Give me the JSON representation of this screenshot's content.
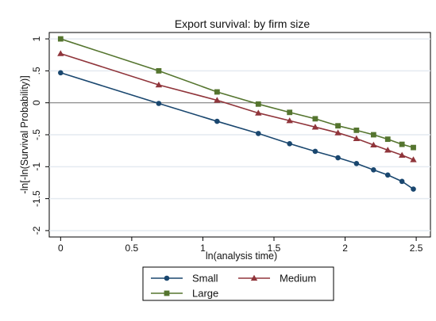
{
  "chart_data": {
    "type": "line",
    "title": "Export survival: by firm size",
    "xlabel": "ln(analysis time)",
    "ylabel": "-ln[-ln(Survival Probability)]",
    "xlim": [
      -0.08,
      2.6
    ],
    "ylim": [
      -2.1,
      1.1
    ],
    "xticks": [
      0,
      0.5,
      1,
      1.5,
      2,
      2.5
    ],
    "xtick_labels": [
      "0",
      "0.5",
      "1",
      "1.5",
      "2",
      "2.5"
    ],
    "yticks": [
      1,
      0.5,
      0,
      -0.5,
      -1,
      -1.5,
      -2
    ],
    "ytick_labels": [
      "1",
      ".5",
      "0",
      "-.5",
      "-1",
      "-1.5",
      "-2"
    ],
    "grid": true,
    "reference_line_y": 0,
    "legend_position": "bottom",
    "series": [
      {
        "name": "Small",
        "color": "#1a476f",
        "marker": "circle",
        "x": [
          0,
          0.69,
          1.1,
          1.39,
          1.61,
          1.79,
          1.95,
          2.08,
          2.2,
          2.3,
          2.4,
          2.48
        ],
        "y": [
          0.47,
          -0.01,
          -0.29,
          -0.48,
          -0.64,
          -0.76,
          -0.86,
          -0.95,
          -1.05,
          -1.13,
          -1.23,
          -1.35
        ]
      },
      {
        "name": "Medium",
        "color": "#90353b",
        "marker": "triangle",
        "x": [
          0,
          0.69,
          1.1,
          1.39,
          1.61,
          1.79,
          1.95,
          2.08,
          2.2,
          2.3,
          2.4,
          2.48
        ],
        "y": [
          0.77,
          0.28,
          0.04,
          -0.16,
          -0.28,
          -0.38,
          -0.47,
          -0.56,
          -0.66,
          -0.74,
          -0.82,
          -0.89
        ]
      },
      {
        "name": "Large",
        "color": "#55752f",
        "marker": "square",
        "x": [
          0,
          0.69,
          1.1,
          1.39,
          1.61,
          1.79,
          1.95,
          2.08,
          2.2,
          2.3,
          2.4,
          2.48
        ],
        "y": [
          1.0,
          0.5,
          0.17,
          -0.02,
          -0.15,
          -0.25,
          -0.36,
          -0.43,
          -0.5,
          -0.57,
          -0.65,
          -0.7
        ]
      }
    ]
  }
}
